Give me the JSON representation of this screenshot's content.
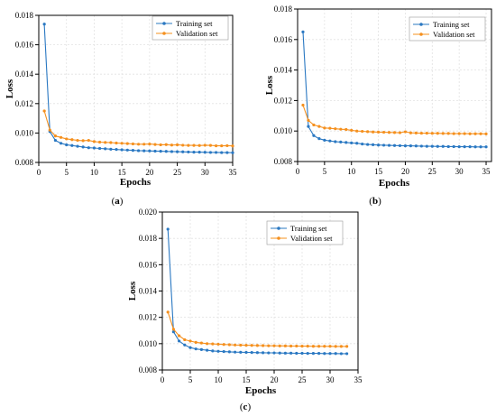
{
  "colors": {
    "training": "#2a78c2",
    "validation": "#f5901e",
    "axis": "#000000",
    "grid": "#e2e2e2",
    "legend_border": "#999999"
  },
  "chart_data": [
    {
      "type": "line",
      "caption": "(a)",
      "xlabel": "Epochs",
      "ylabel": "Loss",
      "xlim": [
        0,
        35
      ],
      "ylim": [
        0.008,
        0.018
      ],
      "xticks": [
        0,
        5,
        10,
        15,
        20,
        25,
        30,
        35
      ],
      "yticks": [
        0.008,
        0.01,
        0.012,
        0.014,
        0.016,
        0.018
      ],
      "ytick_labels": [
        "0.008",
        "0.010",
        "0.012",
        "0.014",
        "0.016",
        "0.018"
      ],
      "grid": true,
      "legend_position": "top-right",
      "x": [
        1,
        2,
        3,
        4,
        5,
        6,
        7,
        8,
        9,
        10,
        11,
        12,
        13,
        14,
        15,
        16,
        17,
        18,
        19,
        20,
        21,
        22,
        23,
        24,
        25,
        26,
        27,
        28,
        29,
        30,
        31,
        32,
        33,
        34,
        35
      ],
      "series": [
        {
          "name": "Training set",
          "color_key": "training",
          "values": [
            0.0174,
            0.0101,
            0.0095,
            0.0093,
            0.0092,
            0.00915,
            0.0091,
            0.00905,
            0.009,
            0.00898,
            0.00895,
            0.00893,
            0.0089,
            0.00888,
            0.00886,
            0.00884,
            0.00882,
            0.0088,
            0.00879,
            0.00878,
            0.00877,
            0.00876,
            0.00875,
            0.00874,
            0.00873,
            0.00872,
            0.00871,
            0.0087,
            0.0087,
            0.00869,
            0.00868,
            0.00868,
            0.00867,
            0.00867,
            0.00866
          ]
        },
        {
          "name": "Validation set",
          "color_key": "validation",
          "values": [
            0.0115,
            0.0102,
            0.0098,
            0.0097,
            0.0096,
            0.00955,
            0.0095,
            0.00948,
            0.0095,
            0.00942,
            0.00938,
            0.00936,
            0.00935,
            0.00932,
            0.0093,
            0.00928,
            0.00926,
            0.00924,
            0.00924,
            0.00925,
            0.00922,
            0.0092,
            0.00921,
            0.00918,
            0.0092,
            0.00917,
            0.00916,
            0.00916,
            0.00915,
            0.00917,
            0.00916,
            0.00913,
            0.00913,
            0.00914,
            0.00912
          ]
        }
      ]
    },
    {
      "type": "line",
      "caption": "(b)",
      "xlabel": "Epochs",
      "ylabel": "Loss",
      "xlim": [
        0,
        36
      ],
      "ylim": [
        0.008,
        0.018
      ],
      "xticks": [
        0,
        5,
        10,
        15,
        20,
        25,
        30,
        35
      ],
      "yticks": [
        0.008,
        0.01,
        0.012,
        0.014,
        0.016,
        0.018
      ],
      "ytick_labels": [
        "0.008",
        "0.010",
        "0.012",
        "0.014",
        "0.016",
        "0.018"
      ],
      "grid": true,
      "legend_position": "top-right",
      "x": [
        1,
        2,
        3,
        4,
        5,
        6,
        7,
        8,
        9,
        10,
        11,
        12,
        13,
        14,
        15,
        16,
        17,
        18,
        19,
        20,
        21,
        22,
        23,
        24,
        25,
        26,
        27,
        28,
        29,
        30,
        31,
        32,
        33,
        34,
        35
      ],
      "series": [
        {
          "name": "Training set",
          "color_key": "training",
          "values": [
            0.0165,
            0.0103,
            0.0097,
            0.0095,
            0.0094,
            0.00935,
            0.0093,
            0.00928,
            0.00925,
            0.00922,
            0.0092,
            0.00915,
            0.00912,
            0.0091,
            0.00908,
            0.00907,
            0.00906,
            0.00905,
            0.00904,
            0.00903,
            0.00903,
            0.00902,
            0.00901,
            0.009,
            0.009,
            0.00899,
            0.00899,
            0.00898,
            0.00898,
            0.00897,
            0.00897,
            0.00897,
            0.00896,
            0.00896,
            0.00896
          ]
        },
        {
          "name": "Validation set",
          "color_key": "validation",
          "values": [
            0.0117,
            0.0107,
            0.0104,
            0.0103,
            0.0102,
            0.01018,
            0.01015,
            0.01012,
            0.0101,
            0.01005,
            0.01,
            0.00998,
            0.00996,
            0.00994,
            0.00993,
            0.00992,
            0.00991,
            0.0099,
            0.00989,
            0.00995,
            0.00988,
            0.00987,
            0.00986,
            0.00986,
            0.00985,
            0.00985,
            0.00984,
            0.00984,
            0.00983,
            0.00983,
            0.00983,
            0.00982,
            0.00982,
            0.00982,
            0.00981
          ]
        }
      ]
    },
    {
      "type": "line",
      "caption": "(c)",
      "xlabel": "Epochs",
      "ylabel": "Loss",
      "xlim": [
        0,
        35
      ],
      "ylim": [
        0.008,
        0.02
      ],
      "xticks": [
        0,
        5,
        10,
        15,
        20,
        25,
        30,
        35
      ],
      "yticks": [
        0.008,
        0.01,
        0.012,
        0.014,
        0.016,
        0.018,
        0.02
      ],
      "ytick_labels": [
        "0.008",
        "0.010",
        "0.012",
        "0.014",
        "0.016",
        "0.018",
        "0.020"
      ],
      "grid": true,
      "legend_position": "top-right",
      "x": [
        1,
        2,
        3,
        4,
        5,
        6,
        7,
        8,
        9,
        10,
        11,
        12,
        13,
        14,
        15,
        16,
        17,
        18,
        19,
        20,
        21,
        22,
        23,
        24,
        25,
        26,
        27,
        28,
        29,
        30,
        31,
        32,
        33
      ],
      "series": [
        {
          "name": "Training set",
          "color_key": "training",
          "values": [
            0.0187,
            0.0109,
            0.0102,
            0.0099,
            0.0097,
            0.0096,
            0.00955,
            0.0095,
            0.00945,
            0.00942,
            0.0094,
            0.00938,
            0.00936,
            0.00935,
            0.00934,
            0.00933,
            0.00932,
            0.00931,
            0.0093,
            0.0093,
            0.00929,
            0.00928,
            0.00928,
            0.00927,
            0.00927,
            0.00926,
            0.00926,
            0.00926,
            0.00925,
            0.00925,
            0.00925,
            0.00924,
            0.00924
          ]
        },
        {
          "name": "Validation set",
          "color_key": "validation",
          "values": [
            0.0124,
            0.0111,
            0.0106,
            0.0103,
            0.0102,
            0.0101,
            0.01005,
            0.01,
            0.00998,
            0.00996,
            0.00994,
            0.00992,
            0.0099,
            0.00989,
            0.00988,
            0.00987,
            0.00986,
            0.00985,
            0.00984,
            0.00984,
            0.00983,
            0.00983,
            0.00982,
            0.00982,
            0.00981,
            0.00981,
            0.0098,
            0.0098,
            0.0098,
            0.0098,
            0.00979,
            0.00979,
            0.00979
          ]
        }
      ]
    }
  ]
}
